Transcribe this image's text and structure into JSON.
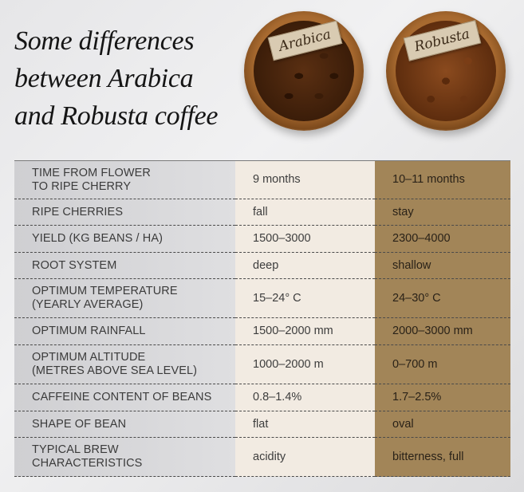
{
  "title": {
    "lines": [
      "Some differences",
      "between Arabica",
      "and Robusta coffee"
    ]
  },
  "bowls": {
    "arabica_tag": "Arabica",
    "robusta_tag": "Robusta"
  },
  "rows": [
    {
      "label": "TIME FROM FLOWER\nTO RIPE CHERRY",
      "arabica": "9 months",
      "robusta": "10–11 months"
    },
    {
      "label": "RIPE CHERRIES",
      "arabica": "fall",
      "robusta": "stay"
    },
    {
      "label": "YIELD (KG BEANS / HA)",
      "arabica": "1500–3000",
      "robusta": "2300–4000"
    },
    {
      "label": "ROOT SYSTEM",
      "arabica": "deep",
      "robusta": "shallow"
    },
    {
      "label": "OPTIMUM TEMPERATURE\n(YEARLY AVERAGE)",
      "arabica": "15–24° C",
      "robusta": "24–30° C"
    },
    {
      "label": "OPTIMUM RAINFALL",
      "arabica": "1500–2000 mm",
      "robusta": "2000–3000 mm"
    },
    {
      "label": "OPTIMUM ALTITUDE\n(METRES ABOVE SEA LEVEL)",
      "arabica": "1000–2000 m",
      "robusta": "0–700 m"
    },
    {
      "label": "CAFFEINE CONTENT OF BEANS",
      "arabica": "0.8–1.4%",
      "robusta": "1.7–2.5%"
    },
    {
      "label": "SHAPE OF BEAN",
      "arabica": "flat",
      "robusta": "oval"
    },
    {
      "label": "TYPICAL BREW\nCHARACTERISTICS",
      "arabica": "acidity",
      "robusta": "bitterness, full"
    }
  ]
}
